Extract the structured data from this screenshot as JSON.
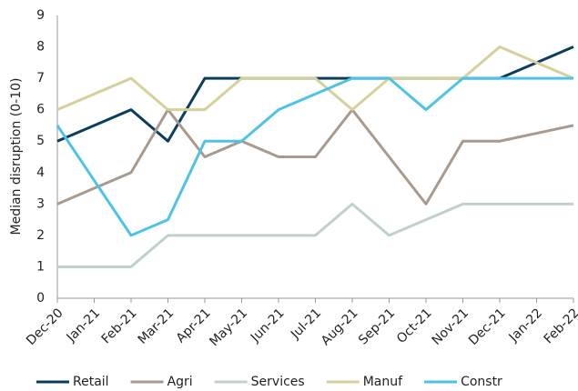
{
  "chart_data": {
    "type": "line",
    "y_label": "Median disruption (0-10)",
    "categories": [
      "Dec-20",
      "Jan-21",
      "Feb-21",
      "Mar-21",
      "Apr-21",
      "May-21",
      "Jun-21",
      "Jul-21",
      "Aug-21",
      "Sep-21",
      "Oct-21",
      "Nov-21",
      "Dec-21",
      "Jan-22",
      "Feb-22"
    ],
    "series": [
      {
        "name": "Retail",
        "color": "#0b3d5c",
        "values": [
          5,
          5.5,
          6,
          5,
          7,
          7,
          7,
          7,
          7,
          7,
          7,
          7,
          7,
          7.5,
          8
        ]
      },
      {
        "name": "Agri",
        "color": "#a89a8e",
        "values": [
          3,
          3.5,
          4,
          6,
          4.5,
          5,
          4.5,
          4.5,
          6,
          4.5,
          3,
          5,
          5,
          5.25,
          5.5
        ]
      },
      {
        "name": "Services",
        "color": "#bfd1c9",
        "values": [
          1,
          1,
          1,
          2,
          2,
          2,
          2,
          2,
          3,
          2,
          2.5,
          3,
          3,
          3,
          3
        ]
      },
      {
        "name": "Manuf",
        "color": "#d6d09a",
        "values": [
          6,
          6.5,
          7,
          6,
          6,
          7,
          7,
          7,
          6,
          7,
          7,
          7,
          8,
          7.5,
          7
        ]
      },
      {
        "name": "Constr",
        "color": "#4ec3e6",
        "values": [
          5.5,
          3.75,
          2,
          2.5,
          5,
          5,
          6,
          6.5,
          7,
          7,
          6,
          7,
          7,
          7,
          7
        ]
      }
    ],
    "ylim": [
      0,
      9
    ],
    "yticks": [
      0,
      1,
      2,
      3,
      4,
      5,
      6,
      7,
      8,
      9
    ],
    "legend": "bottom"
  }
}
